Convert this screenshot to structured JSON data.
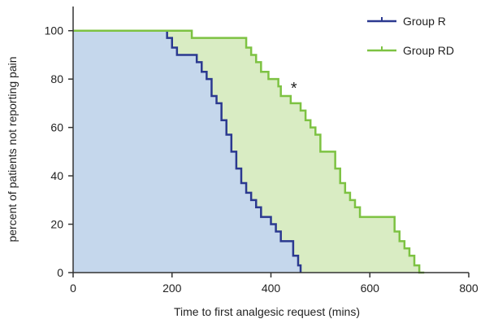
{
  "chart_data": {
    "type": "line",
    "subtype": "kaplan-meier-step",
    "xlabel": "Time to first analgesic request (mins)",
    "ylabel": "percent of patients not reporting pain",
    "xlim": [
      0,
      800
    ],
    "ylim": [
      0,
      110
    ],
    "xticks": [
      0,
      200,
      400,
      600,
      800
    ],
    "yticks": [
      0,
      20,
      40,
      60,
      80,
      100
    ],
    "xtick_labels": [
      "0",
      "200",
      "400",
      "600",
      "800"
    ],
    "ytick_labels": [
      "0",
      "20",
      "40",
      "60",
      "80",
      "100"
    ],
    "grid": false,
    "legend_position": "top-right",
    "annotations": [
      {
        "text": "*",
        "x": 445,
        "y": 72
      }
    ],
    "series": [
      {
        "name": "Group R",
        "color": "#2b3990",
        "fill": "#c5d7ec",
        "x": [
          0,
          180,
          190,
          200,
          210,
          220,
          250,
          260,
          270,
          280,
          290,
          300,
          310,
          320,
          330,
          340,
          350,
          360,
          370,
          380,
          400,
          410,
          420,
          445,
          455,
          460
        ],
        "y": [
          100,
          100,
          97,
          93,
          90,
          90,
          87,
          83,
          80,
          73,
          70,
          63,
          57,
          50,
          43,
          37,
          33,
          30,
          27,
          23,
          20,
          17,
          13,
          7,
          3,
          0
        ]
      },
      {
        "name": "Group RD",
        "color": "#7dc242",
        "fill": "#d9ecc3",
        "x": [
          0,
          240,
          340,
          350,
          360,
          370,
          380,
          395,
          415,
          420,
          440,
          460,
          470,
          480,
          490,
          500,
          530,
          540,
          550,
          560,
          570,
          580,
          640,
          650,
          660,
          670,
          680,
          690,
          700,
          710
        ],
        "y": [
          100,
          97,
          97,
          93,
          90,
          87,
          83,
          80,
          77,
          73,
          70,
          67,
          63,
          60,
          57,
          50,
          43,
          37,
          33,
          30,
          27,
          23,
          23,
          17,
          13,
          10,
          7,
          3,
          0,
          0
        ]
      }
    ]
  }
}
